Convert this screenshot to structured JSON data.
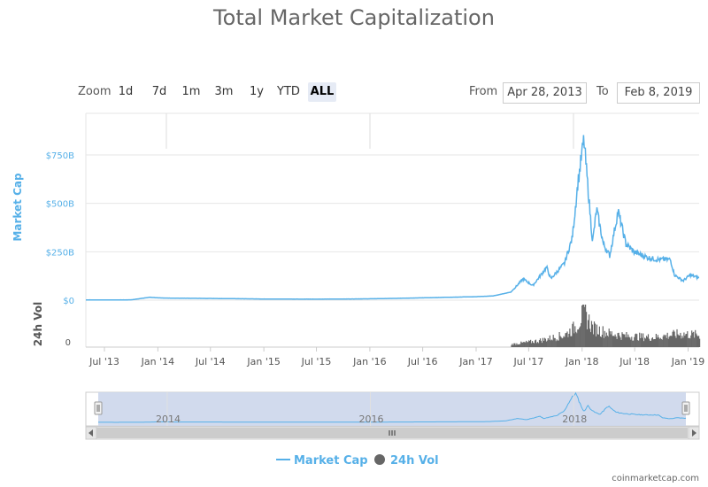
{
  "chart_data": {
    "type": "line",
    "title": "Total Market Capitalization",
    "controls": {
      "zoom_label": "Zoom",
      "zoom_buttons": [
        "1d",
        "7d",
        "1m",
        "3m",
        "1y",
        "YTD",
        "ALL"
      ],
      "zoom_active": "ALL",
      "from_label": "From",
      "from_value": "Apr 28, 2013",
      "to_label": "To",
      "to_value": "Feb 8, 2019"
    },
    "x_ticks": [
      "Jul '13",
      "Jan '14",
      "Jul '14",
      "Jan '15",
      "Jul '15",
      "Jan '16",
      "Jul '16",
      "Jan '17",
      "Jul '17",
      "Jan '18",
      "Jul '18",
      "Jan '19"
    ],
    "y_axis": {
      "label": "Market Cap",
      "ticks": [
        "$0",
        "$250B",
        "$500B",
        "$750B"
      ],
      "ylim": [
        0,
        850
      ]
    },
    "vol_axis": {
      "label": "24h Vol",
      "ticks": [
        "0"
      ]
    },
    "navigator_ticks": [
      "2014",
      "2016",
      "2018"
    ],
    "legend": [
      "Market Cap",
      "24h Vol"
    ],
    "credit": "coinmarketcap.com",
    "colors": {
      "market_cap": "#56b0e8",
      "volume": "#666666",
      "navigator_fill": "#ccd6eb",
      "grid": "#e6e6e6"
    },
    "series": [
      {
        "name": "Market Cap",
        "unit": "billion USD",
        "x": [
          "2013-04-28",
          "2013-07-01",
          "2013-10-01",
          "2013-12-04",
          "2014-01-01",
          "2014-03-01",
          "2014-07-01",
          "2015-01-01",
          "2015-07-01",
          "2016-01-01",
          "2016-07-01",
          "2017-01-01",
          "2017-03-01",
          "2017-05-01",
          "2017-06-12",
          "2017-07-15",
          "2017-09-01",
          "2017-09-15",
          "2017-11-01",
          "2017-11-28",
          "2017-12-17",
          "2018-01-07",
          "2018-02-06",
          "2018-02-20",
          "2018-03-15",
          "2018-04-06",
          "2018-05-05",
          "2018-06-01",
          "2018-06-28",
          "2018-08-15",
          "2018-09-15",
          "2018-11-01",
          "2018-11-15",
          "2018-12-15",
          "2019-01-08",
          "2019-02-08"
        ],
        "values": [
          1.5,
          1.2,
          1.6,
          15,
          12,
          10,
          9,
          6,
          5,
          7,
          12,
          18,
          22,
          42,
          110,
          75,
          170,
          110,
          190,
          320,
          600,
          830,
          300,
          470,
          290,
          230,
          460,
          290,
          250,
          220,
          210,
          210,
          130,
          100,
          130,
          115
        ]
      },
      {
        "name": "24h Vol",
        "unit": "relative",
        "x": [
          "2013-04-28",
          "2017-05-01",
          "2017-08-01",
          "2017-11-01",
          "2017-12-10",
          "2018-01-06",
          "2018-02-06",
          "2018-04-01",
          "2018-06-01",
          "2018-09-01",
          "2018-12-01",
          "2019-02-08"
        ],
        "values": [
          0.02,
          0.08,
          0.18,
          0.35,
          0.6,
          1.0,
          0.55,
          0.4,
          0.32,
          0.28,
          0.38,
          0.35
        ]
      }
    ]
  }
}
